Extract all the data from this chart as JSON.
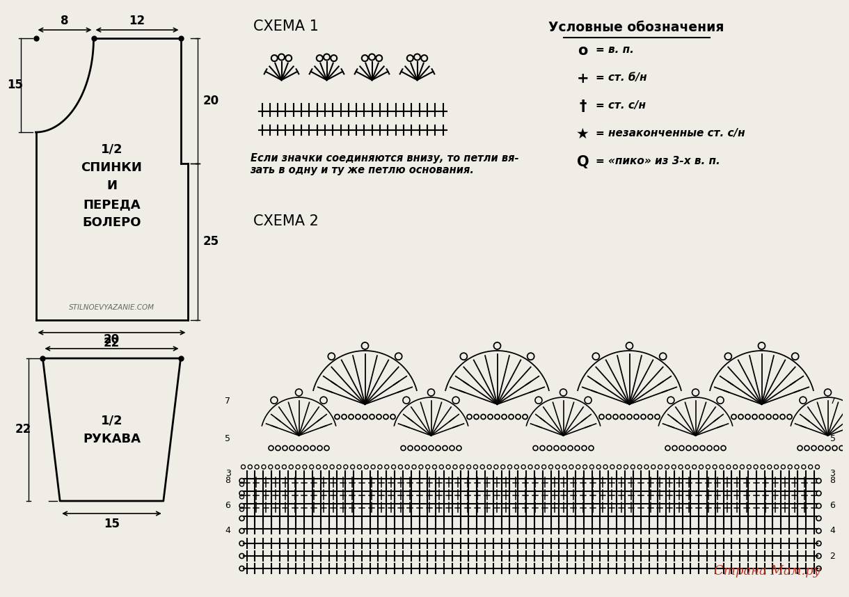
{
  "bg_color": "#f0ede6",
  "black": "#000000",
  "schema1_title": "СХЕМА 1",
  "schema2_title": "СХЕМА 2",
  "legend_title": "Условные обозначения",
  "italic_text": "Если значки соединяются внизу, то петли вя-\nзать в одну и ту же петлю основания.",
  "bolero_label": "1/2\nСПИНКИ\nИ\nПЕРЕДА\nБОЛЕРО",
  "sleeve_label": "1/2\nРУКАВА",
  "watermark": "STILNOEVYAZANIE.COM",
  "brand": "Страна Мам.ру",
  "brand_color": "#c0392b",
  "dim_8": "8",
  "dim_12": "12",
  "dim_15_bolero": "15",
  "dim_20_bolero": "20",
  "dim_25_bolero": "25",
  "dim_22_bolero": "22",
  "dim_20_sleeve": "20",
  "dim_22_sleeve": "22",
  "dim_15_sleeve": "15"
}
